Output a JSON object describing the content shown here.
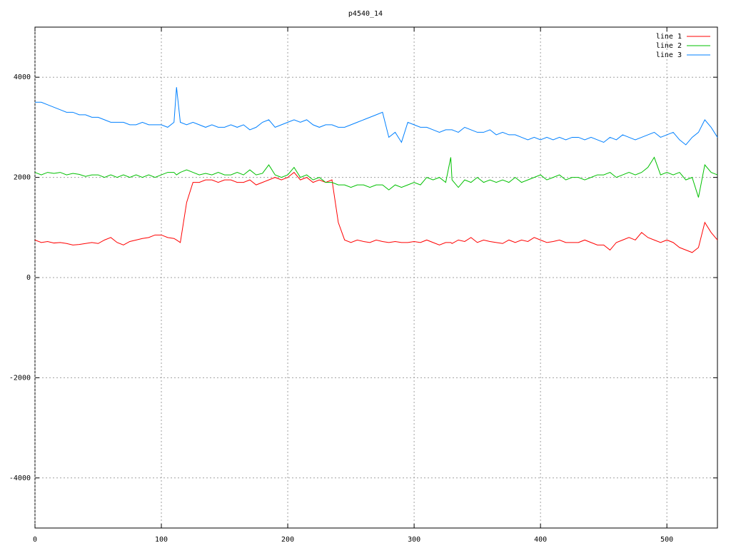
{
  "chart_data": {
    "type": "line",
    "title": "p4540_14",
    "xlim": [
      0,
      540
    ],
    "xticks": [
      0,
      100,
      200,
      300,
      400,
      500
    ],
    "ylim": [
      -5000,
      5000
    ],
    "yticks": [
      -4000,
      -2000,
      0,
      2000,
      4000
    ],
    "grid": true,
    "legend": "top-right",
    "x": [
      0,
      5,
      10,
      15,
      20,
      25,
      30,
      35,
      40,
      45,
      50,
      55,
      60,
      65,
      70,
      75,
      80,
      85,
      90,
      95,
      100,
      105,
      110,
      112,
      115,
      120,
      125,
      130,
      135,
      140,
      145,
      150,
      155,
      160,
      165,
      170,
      175,
      180,
      185,
      190,
      195,
      200,
      205,
      210,
      215,
      220,
      225,
      230,
      235,
      240,
      245,
      250,
      255,
      260,
      265,
      270,
      275,
      280,
      285,
      290,
      295,
      300,
      305,
      310,
      315,
      320,
      325,
      329,
      330,
      335,
      340,
      345,
      350,
      355,
      360,
      365,
      370,
      375,
      380,
      385,
      390,
      395,
      400,
      405,
      410,
      415,
      420,
      425,
      430,
      435,
      440,
      445,
      450,
      455,
      460,
      465,
      470,
      475,
      480,
      485,
      490,
      495,
      500,
      505,
      510,
      515,
      520,
      525,
      530,
      535,
      540
    ],
    "series": [
      {
        "name": "line 1",
        "color": "#ff0000",
        "values": [
          750,
          700,
          720,
          690,
          700,
          680,
          650,
          660,
          680,
          700,
          680,
          750,
          800,
          700,
          650,
          720,
          750,
          780,
          800,
          850,
          850,
          800,
          780,
          750,
          700,
          1500,
          1900,
          1900,
          1950,
          1950,
          1900,
          1950,
          1950,
          1900,
          1900,
          1950,
          1850,
          1900,
          1950,
          2000,
          1950,
          2000,
          2100,
          1950,
          2000,
          1900,
          1950,
          1900,
          1950,
          1100,
          750,
          700,
          750,
          720,
          700,
          750,
          720,
          700,
          720,
          700,
          700,
          720,
          700,
          750,
          700,
          650,
          700,
          700,
          680,
          750,
          720,
          800,
          700,
          750,
          720,
          700,
          680,
          750,
          700,
          750,
          720,
          800,
          750,
          700,
          720,
          750,
          700,
          700,
          700,
          750,
          700,
          650,
          650,
          550,
          700,
          750,
          800,
          750,
          900,
          800,
          750,
          700,
          750,
          700,
          600,
          550,
          500,
          600,
          1100,
          900,
          750
        ]
      },
      {
        "name": "line 2",
        "color": "#00c000",
        "values": [
          2100,
          2050,
          2100,
          2080,
          2100,
          2050,
          2080,
          2060,
          2020,
          2050,
          2050,
          2000,
          2050,
          2000,
          2050,
          2000,
          2050,
          2000,
          2050,
          2000,
          2050,
          2100,
          2100,
          2050,
          2100,
          2150,
          2100,
          2050,
          2080,
          2050,
          2100,
          2050,
          2050,
          2100,
          2050,
          2150,
          2050,
          2080,
          2250,
          2050,
          2000,
          2050,
          2200,
          2000,
          2050,
          1950,
          2000,
          1900,
          1900,
          1850,
          1850,
          1800,
          1850,
          1850,
          1800,
          1850,
          1850,
          1750,
          1850,
          1800,
          1850,
          1900,
          1850,
          2000,
          1950,
          2000,
          1900,
          2400,
          1950,
          1800,
          1950,
          1900,
          2000,
          1900,
          1950,
          1900,
          1950,
          1900,
          2000,
          1900,
          1950,
          2000,
          2050,
          1950,
          2000,
          2050,
          1950,
          2000,
          2000,
          1950,
          2000,
          2050,
          2050,
          2100,
          2000,
          2050,
          2100,
          2050,
          2100,
          2200,
          2400,
          2050,
          2100,
          2050,
          2100,
          1950,
          2000,
          1600,
          2250,
          2100,
          2050
        ]
      },
      {
        "name": "line 3",
        "color": "#0080ff",
        "values": [
          3500,
          3500,
          3450,
          3400,
          3350,
          3300,
          3300,
          3250,
          3250,
          3200,
          3200,
          3150,
          3100,
          3100,
          3100,
          3050,
          3050,
          3100,
          3050,
          3050,
          3050,
          3000,
          3100,
          3800,
          3100,
          3050,
          3100,
          3050,
          3000,
          3050,
          3000,
          3000,
          3050,
          3000,
          3050,
          2950,
          3000,
          3100,
          3150,
          3000,
          3050,
          3100,
          3150,
          3100,
          3150,
          3050,
          3000,
          3050,
          3050,
          3000,
          3000,
          3050,
          3100,
          3150,
          3200,
          3250,
          3300,
          2800,
          2900,
          2700,
          3100,
          3050,
          3000,
          3000,
          2950,
          2900,
          2950,
          2950,
          2950,
          2900,
          3000,
          2950,
          2900,
          2900,
          2950,
          2850,
          2900,
          2850,
          2850,
          2800,
          2750,
          2800,
          2750,
          2800,
          2750,
          2800,
          2750,
          2800,
          2800,
          2750,
          2800,
          2750,
          2700,
          2800,
          2750,
          2850,
          2800,
          2750,
          2800,
          2850,
          2900,
          2800,
          2850,
          2900,
          2750,
          2650,
          2800,
          2900,
          3150,
          3000,
          2800
        ]
      }
    ]
  }
}
